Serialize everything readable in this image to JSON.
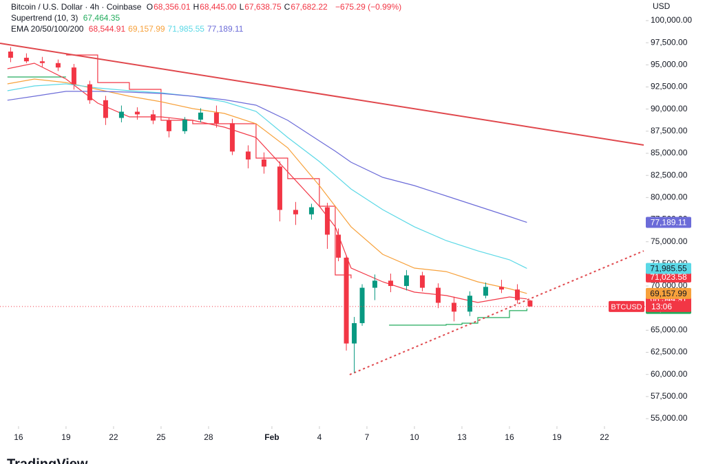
{
  "chart_data": {
    "type": "candlestick",
    "title": "Bitcoin / U.S. Dollar · 4h · Coinbase",
    "ohlc_legend": [
      {
        "key": "O",
        "value": 68356.01,
        "label": "68,356.01"
      },
      {
        "key": "H",
        "value": 68445.0,
        "label": "68,445.00"
      },
      {
        "key": "L",
        "value": 67638.75,
        "label": "67,638.75"
      },
      {
        "key": "C",
        "value": 67682.22,
        "label": "67,682.22"
      }
    ],
    "change": "−675.29 (−0.99%)",
    "y_unit": "USD",
    "xlim": [
      -1.17,
      39.61
    ],
    "xticks": [
      {
        "value": 0,
        "label": "16"
      },
      {
        "value": 3,
        "label": "19"
      },
      {
        "value": 6,
        "label": "22"
      },
      {
        "value": 9,
        "label": "25"
      },
      {
        "value": 12,
        "label": "28"
      },
      {
        "value": 16,
        "label": "Feb",
        "bold": true
      },
      {
        "value": 19,
        "label": "4"
      },
      {
        "value": 22,
        "label": "7"
      },
      {
        "value": 25,
        "label": "10"
      },
      {
        "value": 28,
        "label": "13"
      },
      {
        "value": 31,
        "label": "16"
      },
      {
        "value": 34,
        "label": "19"
      },
      {
        "value": 37,
        "label": "22"
      }
    ],
    "ylim": [
      54150,
      102330
    ],
    "yticks": [
      {
        "value": 55000,
        "label": "55,000.00"
      },
      {
        "value": 57500,
        "label": "57,500.00"
      },
      {
        "value": 60000,
        "label": "60,000.00"
      },
      {
        "value": 62500,
        "label": "62,500.00"
      },
      {
        "value": 65000,
        "label": "65,000.00"
      },
      {
        "value": 67500,
        "label": "67,500.00"
      },
      {
        "value": 70000,
        "label": "70,000.00"
      },
      {
        "value": 72500,
        "label": "72,500.00"
      },
      {
        "value": 75000,
        "label": "75,000.00"
      },
      {
        "value": 77500,
        "label": "77,500.00"
      },
      {
        "value": 80000,
        "label": "80,000.00"
      },
      {
        "value": 82500,
        "label": "82,500.00"
      },
      {
        "value": 85000,
        "label": "85,000.00"
      },
      {
        "value": 87500,
        "label": "87,500.00"
      },
      {
        "value": 90000,
        "label": "90,000.00"
      },
      {
        "value": 92500,
        "label": "92,500.00"
      },
      {
        "value": 95000,
        "label": "95,000.00"
      },
      {
        "value": 97500,
        "label": "97,500.00"
      },
      {
        "value": 100000,
        "label": "100,000.00"
      }
    ],
    "up_color": "#089981",
    "down_color": "#f23645",
    "candles": {
      "x": [
        -0.5,
        0.5,
        1.5,
        2.5,
        3.5,
        4.5,
        5.5,
        6.5,
        7.5,
        8.5,
        9.5,
        10.5,
        11.5,
        12.5,
        13.5,
        14.5,
        15.5,
        16.5,
        17.5,
        18.5,
        19.5,
        20.2,
        20.7,
        21.2,
        21.7,
        22.5,
        23.5,
        24.5,
        25.5,
        26.5,
        27.5,
        28.5,
        29.5,
        30.5,
        31.5,
        32.3
      ],
      "open": [
        96500,
        95800,
        95400,
        95200,
        94700,
        92800,
        91000,
        89000,
        89700,
        89400,
        88700,
        87500,
        88800,
        89600,
        88400,
        85200,
        84300,
        83500,
        78600,
        78100,
        78900,
        75800,
        73200,
        63500,
        65800,
        69800,
        70600,
        70000,
        71200,
        69800,
        68100,
        67100,
        68900,
        69900,
        69600,
        68356.01
      ],
      "high": [
        97000,
        96300,
        95900,
        95600,
        95100,
        93200,
        91500,
        90400,
        90200,
        89900,
        89000,
        89100,
        90100,
        90400,
        88900,
        85900,
        85100,
        84100,
        79500,
        79300,
        79400,
        76500,
        73500,
        66500,
        70200,
        71300,
        71400,
        71800,
        71600,
        70300,
        68800,
        69400,
        70400,
        70700,
        70200,
        68445.0
      ],
      "low": [
        95300,
        95200,
        94800,
        94300,
        92200,
        90600,
        88200,
        88500,
        88800,
        88300,
        86800,
        87200,
        88500,
        87900,
        84800,
        83300,
        82700,
        77300,
        76900,
        77500,
        74200,
        72800,
        62700,
        60200,
        65500,
        68400,
        69300,
        69500,
        69400,
        67500,
        66000,
        66600,
        68600,
        69200,
        68000,
        67638.75
      ],
      "close": [
        95800,
        95400,
        95200,
        94700,
        92800,
        91000,
        89000,
        89700,
        89400,
        88700,
        87500,
        88800,
        89600,
        88400,
        85200,
        84300,
        83500,
        78600,
        78100,
        78900,
        75800,
        73200,
        63500,
        65800,
        69800,
        70600,
        70000,
        71200,
        69800,
        68100,
        67100,
        68900,
        69900,
        69600,
        68400,
        67682.22
      ]
    },
    "supertrend": {
      "label": "Supertrend (10, 3)",
      "last": {
        "value": 67464.35,
        "label": "67,464.35",
        "color": "#22ab5c"
      },
      "segments": [
        {
          "color": "#22ab5c",
          "x": [
            -0.7,
            1,
            3
          ],
          "values": [
            93630,
            93630,
            93630
          ]
        },
        {
          "color": "#f23645",
          "x": [
            3,
            5,
            7,
            9,
            11,
            13,
            15,
            17,
            19,
            20,
            21
          ],
          "values": [
            96110,
            93000,
            92230,
            88730,
            88340,
            88340,
            84460,
            82130,
            79020,
            71250,
            70860
          ]
        },
        {
          "color": "#22ab5c",
          "x": [
            23.4,
            25,
            27,
            28,
            29,
            31,
            32.1
          ],
          "values": [
            65570,
            65570,
            65650,
            65800,
            66430,
            67210,
            67464.35
          ]
        }
      ]
    },
    "ema": {
      "label": "EMA 20/50/100/200",
      "x": [
        -0.7,
        1,
        3,
        5,
        7,
        9,
        11,
        13,
        15,
        17,
        19,
        20,
        21,
        23,
        25,
        27,
        29,
        31,
        32.1
      ],
      "series": [
        {
          "color": "#f23645",
          "values": [
            94560,
            95180,
            93390,
            90670,
            89120,
            89120,
            88730,
            87950,
            86790,
            82900,
            79020,
            76690,
            72030,
            70470,
            69300,
            68920,
            68140,
            68760,
            68544.91
          ],
          "last": {
            "value": 68544.91,
            "label": "68,544.91"
          }
        },
        {
          "color": "#f7a13b",
          "values": [
            92850,
            93390,
            93000,
            92230,
            91450,
            90830,
            90050,
            89510,
            88340,
            85620,
            81350,
            79020,
            76690,
            73580,
            72020,
            71630,
            70470,
            69690,
            69157.99
          ],
          "last": {
            "value": 69157.99,
            "label": "69,157.99"
          }
        },
        {
          "color": "#5ad8e6",
          "values": [
            92070,
            92620,
            92850,
            92380,
            92070,
            91840,
            91450,
            90830,
            89740,
            86790,
            84070,
            82520,
            80960,
            78630,
            76690,
            75130,
            73970,
            72960,
            71985.55
          ],
          "last": {
            "value": 71985.55,
            "label": "71,985.55"
          }
        },
        {
          "color": "#6b6bd8",
          "values": [
            91000,
            91450,
            92000,
            92000,
            91920,
            91760,
            91450,
            91060,
            90440,
            88730,
            86400,
            85240,
            83990,
            82280,
            81350,
            80180,
            79020,
            77850,
            77189.11
          ],
          "last": {
            "value": 77189.11,
            "label": "77,189.11"
          }
        }
      ]
    },
    "price_tags": [
      {
        "value": 71023.58,
        "label": "71,023.58",
        "color": "#f23645"
      }
    ],
    "symbol_tag": {
      "label": "BTCUSD",
      "time": "13:06",
      "color": "#f23645"
    },
    "drawings": [
      {
        "color": "#e0474c",
        "dashed": false,
        "x": [
          -1.17,
          39.48
        ],
        "values": [
          97436,
          85934
        ]
      },
      {
        "color": "#e0474c",
        "dashed": true,
        "x": [
          20.91,
          39.48
        ],
        "values": [
          59980,
          73967
        ]
      }
    ],
    "watermark": "TradingView"
  }
}
